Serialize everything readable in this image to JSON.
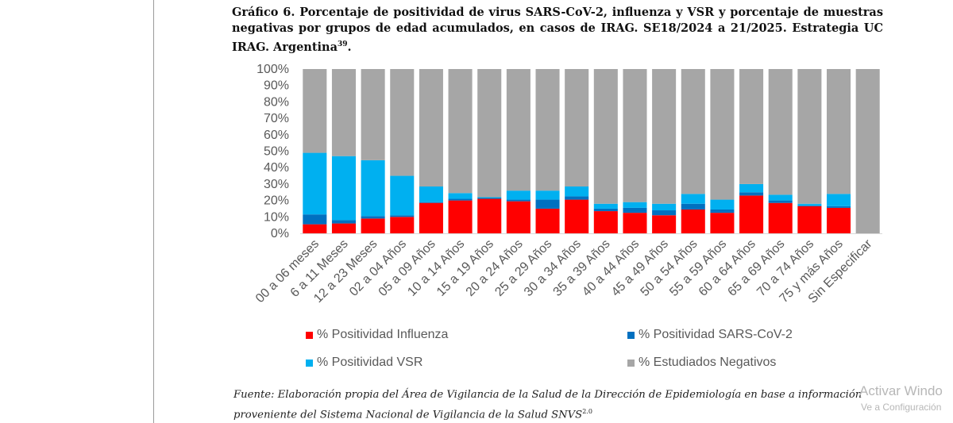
{
  "figure": {
    "title": "Gráfico 6. Porcentaje de positividad de virus SARS-CoV-2, influenza y VSR y porcentaje de muestras negativas por grupos de edad acumulados, en casos de IRAG. SE18/2024 a 21/2025. Estrategia UC IRAG. Argentina",
    "title_superscript": "39",
    "title_end": ".",
    "source_line1": "Fuente: Elaboración propia del Área de Vigilancia de la Salud de la Dirección de Epidemiología en base a información",
    "source_line2": "proveniente del Sistema Nacional de Vigilancia de la Salud SNVS",
    "source_superscript": "2.0"
  },
  "watermark": {
    "line1": "Activar Windo",
    "line2": "Ve a Configuración"
  },
  "colors": {
    "influenza": "#ff0000",
    "sars": "#0070c0",
    "vsr": "#00b0f0",
    "negativos": "#a6a6a6"
  },
  "chart_data": {
    "type": "bar",
    "stacked": true,
    "categories": [
      "00 a 06 meses",
      "6 a 11 Meses",
      "12 a 23 Meses",
      "02 a 04 Años",
      "05 a 09 Años",
      "10 a 14 Años",
      "15 a 19 Años",
      "20 a 24 Años",
      "25 a 29 Años",
      "30 a 34 Años",
      "35 a 39 Años",
      "40 a 44 Años",
      "45 a 49 Años",
      "50 a 54 Años",
      "55 a 59 Años",
      "60 a 64 Años",
      "65 a 69 Años",
      "70 a 74 Años",
      "75 y más Años",
      "Sin Especificar"
    ],
    "series": [
      {
        "name": "% Positividad Influenza",
        "color": "#ff0000",
        "values": [
          5.5,
          6,
          9,
          10,
          18.5,
          20,
          21,
          19.5,
          15,
          20.5,
          13.5,
          12.5,
          11,
          14.5,
          12.5,
          23,
          18.5,
          16.5,
          15.5,
          0
        ]
      },
      {
        "name": "% Positividad SARS-CoV-2",
        "color": "#0070c0",
        "values": [
          6,
          2,
          1.5,
          1,
          0.5,
          1,
          0.5,
          1,
          5.5,
          2,
          1.5,
          3,
          3,
          3.5,
          2,
          2,
          1.5,
          0.5,
          1,
          0
        ]
      },
      {
        "name": "% Positividad VSR",
        "color": "#00b0f0",
        "values": [
          37.5,
          39,
          34,
          24,
          9.5,
          3.5,
          0.5,
          5.5,
          5.5,
          6,
          3,
          3.5,
          4,
          6,
          6,
          5,
          3.5,
          1,
          7.5,
          0
        ]
      },
      {
        "name": "% Estudiados Negativos",
        "color": "#a6a6a6",
        "values": [
          51,
          53,
          55.5,
          65,
          71.5,
          75.5,
          78,
          74,
          74,
          71.5,
          82,
          81,
          82,
          76,
          79.5,
          70,
          76.5,
          82,
          76,
          100
        ]
      }
    ],
    "ylim": [
      0,
      100
    ],
    "yticks": [
      "0%",
      "10%",
      "20%",
      "30%",
      "40%",
      "50%",
      "60%",
      "70%",
      "80%",
      "90%",
      "100%"
    ],
    "legend": [
      {
        "name": "% Positividad Influenza",
        "color": "#ff0000"
      },
      {
        "name": "% Positividad SARS-CoV-2",
        "color": "#0070c0"
      },
      {
        "name": "% Positividad VSR",
        "color": "#00b0f0"
      },
      {
        "name": "% Estudiados Negativos",
        "color": "#a6a6a6"
      }
    ],
    "legend_position": "bottom"
  }
}
